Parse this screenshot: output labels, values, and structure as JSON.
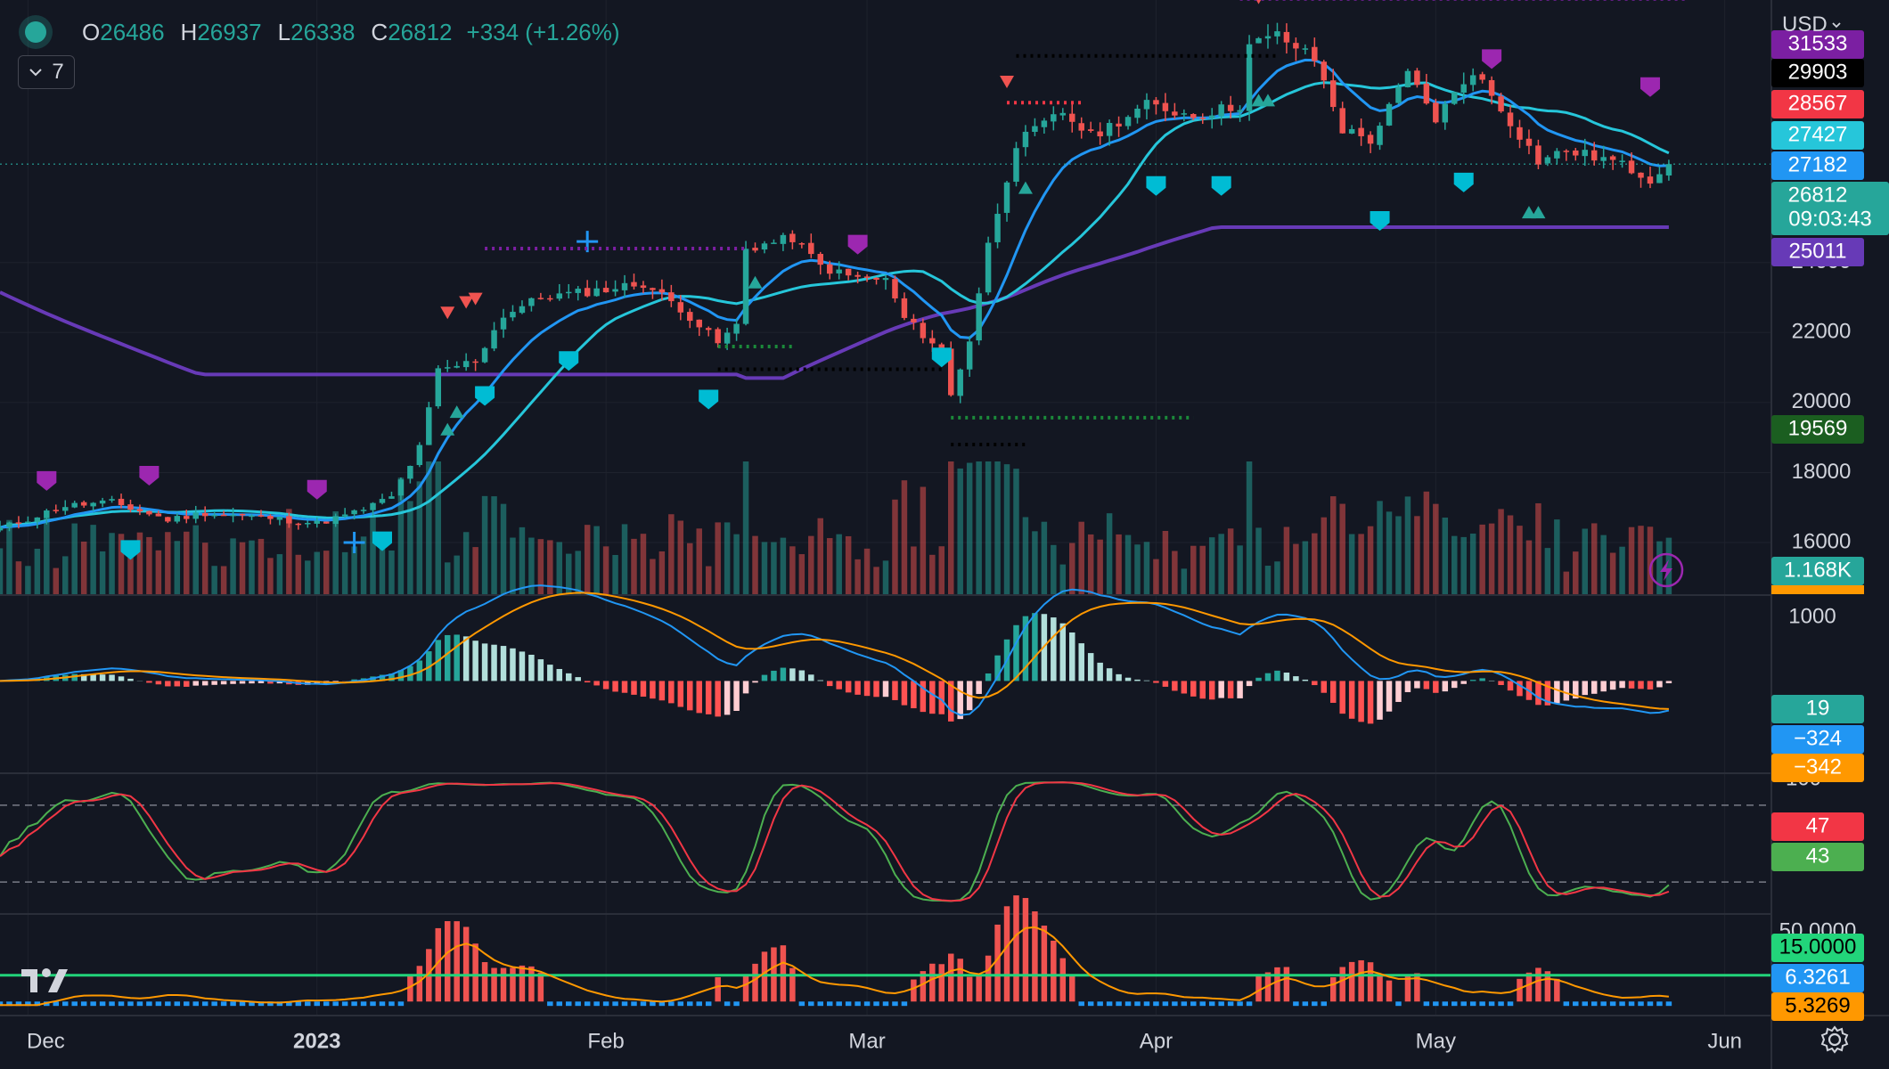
{
  "legend": {
    "o_label": "O",
    "o": "26486",
    "h_label": "H",
    "h": "26937",
    "l_label": "L",
    "l": "26338",
    "c_label": "C",
    "c": "26812",
    "change": "+334 (+1.26%)"
  },
  "indicators_toggle": {
    "count": "7"
  },
  "currency": "USD",
  "colors": {
    "bg": "#131722",
    "up": "#26a69a",
    "down": "#ef5350",
    "ma_fast": "#2196f3",
    "ma_mid": "#26c6da",
    "ma_slow": "#673ab7",
    "macd": "#2196f3",
    "signal": "#ff9800",
    "stoch_k": "#4caf50",
    "stoch_d": "#f23645",
    "adx_hline": "#22d47a",
    "adx_line": "#ff9800",
    "marker_purple": "#9c27b0",
    "marker_cyan": "#00bcd4"
  },
  "chart_data": {
    "type": "candlestick",
    "x_ticks": [
      "Dec",
      "2023",
      "Feb",
      "Mar",
      "Apr",
      "May",
      "Jun"
    ],
    "x_range": [
      "2022-11-28",
      "2023-06-06"
    ],
    "price_axis": {
      "ticks": [
        16000,
        18000,
        20000,
        22000,
        24000
      ],
      "ylim": [
        14500,
        31500
      ],
      "tag_values": [
        {
          "value": "31533",
          "bg": "#7b1fa2"
        },
        {
          "value": "29903",
          "bg": "#000000"
        },
        {
          "value": "28567",
          "bg": "#f23645"
        },
        {
          "value": "27427",
          "bg": "#26c6da"
        },
        {
          "value": "27182",
          "bg": "#2196f3"
        },
        {
          "value": "26812",
          "bg": "#26a69a",
          "sub": "09:03:43"
        },
        {
          "value": "25011",
          "bg": "#673ab7"
        },
        {
          "value": "19569",
          "bg": "#1b5e20"
        }
      ],
      "volume_tag": "1.168K"
    },
    "price_keypoints": [
      [
        "2022-11-28",
        16400
      ],
      [
        "2022-12-05",
        17050
      ],
      [
        "2022-12-10",
        17150
      ],
      [
        "2022-12-16",
        16650
      ],
      [
        "2022-12-20",
        16850
      ],
      [
        "2022-12-27",
        16700
      ],
      [
        "2023-01-01",
        16550
      ],
      [
        "2023-01-05",
        16850
      ],
      [
        "2023-01-09",
        17300
      ],
      [
        "2023-01-12",
        18700
      ],
      [
        "2023-01-14",
        20900
      ],
      [
        "2023-01-18",
        21200
      ],
      [
        "2023-01-21",
        22500
      ],
      [
        "2023-01-25",
        23000
      ],
      [
        "2023-01-31",
        23200
      ],
      [
        "2023-02-05",
        23400
      ],
      [
        "2023-02-09",
        22700
      ],
      [
        "2023-02-13",
        21700
      ],
      [
        "2023-02-15",
        22200
      ],
      [
        "2023-02-16",
        24400
      ],
      [
        "2023-02-21",
        24700
      ],
      [
        "2023-02-24",
        23900
      ],
      [
        "2023-02-27",
        23600
      ],
      [
        "2023-03-03",
        23500
      ],
      [
        "2023-03-05",
        22400
      ],
      [
        "2023-03-09",
        21500
      ],
      [
        "2023-03-10",
        20200
      ],
      [
        "2023-03-12",
        21800
      ],
      [
        "2023-03-14",
        24500
      ],
      [
        "2023-03-17",
        27400
      ],
      [
        "2023-03-22",
        28300
      ],
      [
        "2023-03-25",
        27600
      ],
      [
        "2023-03-31",
        28500
      ],
      [
        "2023-04-05",
        28200
      ],
      [
        "2023-04-10",
        28500
      ],
      [
        "2023-04-11",
        30200
      ],
      [
        "2023-04-14",
        30500
      ],
      [
        "2023-04-18",
        29800
      ],
      [
        "2023-04-20",
        28500
      ],
      [
        "2023-04-21",
        27800
      ],
      [
        "2023-04-24",
        27500
      ],
      [
        "2023-04-26",
        28400
      ],
      [
        "2023-04-28",
        29400
      ],
      [
        "2023-05-01",
        28100
      ],
      [
        "2023-05-05",
        29500
      ],
      [
        "2023-05-08",
        28400
      ],
      [
        "2023-05-12",
        26900
      ],
      [
        "2023-05-15",
        27200
      ],
      [
        "2023-05-20",
        26900
      ],
      [
        "2023-05-24",
        26400
      ],
      [
        "2023-05-26",
        26812
      ]
    ],
    "volume_axis": {
      "ylim": [
        0,
        45000
      ]
    },
    "macd_axis": {
      "ticks": [
        1000
      ],
      "ylim": [
        -1450,
        1350
      ],
      "tags": [
        "19",
        "−324",
        "−342"
      ]
    },
    "stoch_axis": {
      "ticks": [
        100
      ],
      "ylim": [
        -5,
        105
      ],
      "hlines": [
        80,
        20
      ],
      "tags": [
        "47",
        "43"
      ]
    },
    "adx_axis": {
      "ticks": [
        50
      ],
      "ylim": [
        -8,
        50
      ],
      "hline": 15,
      "tags": [
        "50.0000",
        "15.0000",
        "6.3261",
        "5.3269"
      ]
    }
  }
}
